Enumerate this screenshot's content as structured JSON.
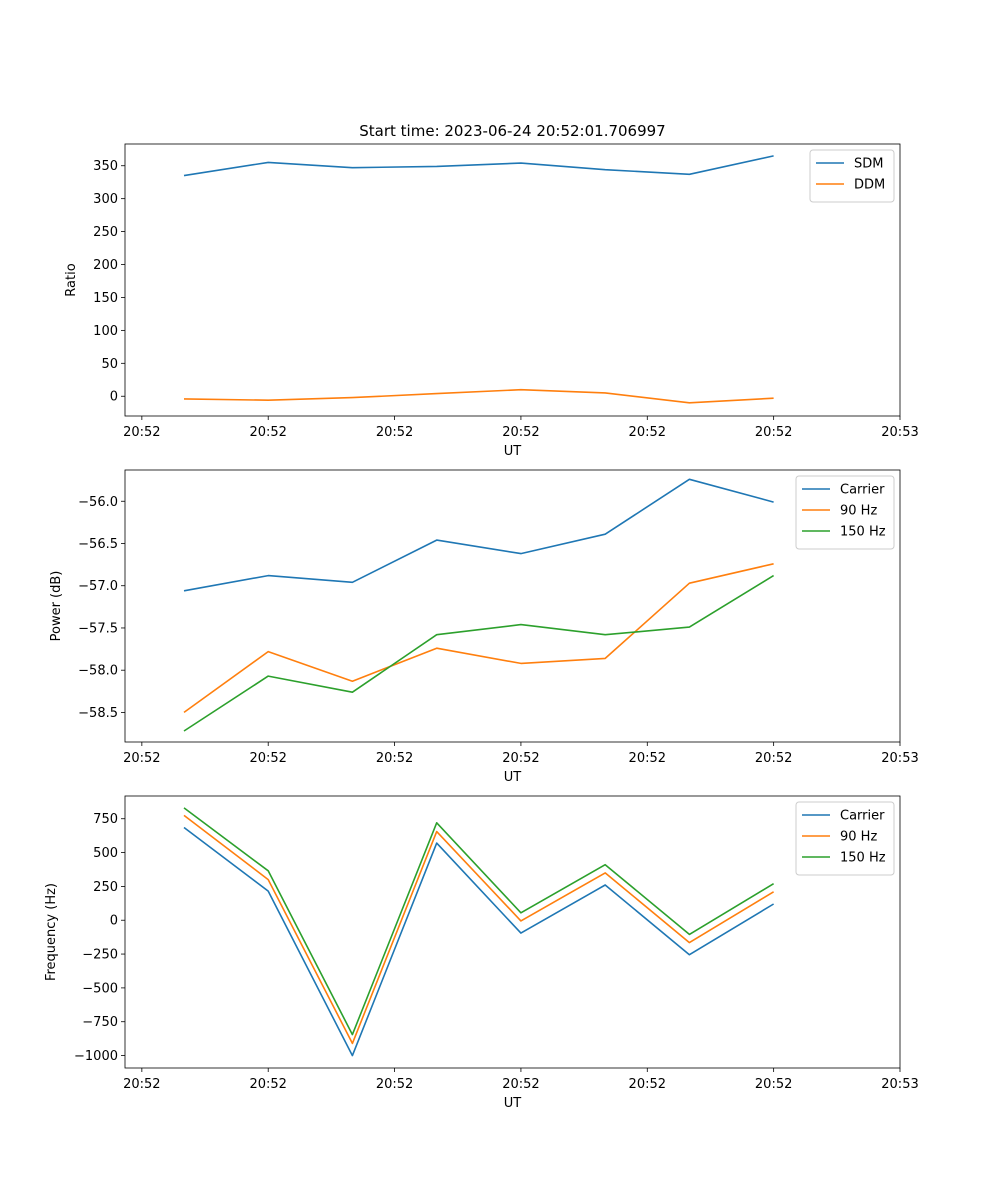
{
  "figure": {
    "title": "Start time: 2023-06-24 20:52:01.706997"
  },
  "chart_data": [
    {
      "type": "line",
      "ylabel": "Ratio",
      "xlabel": "UT",
      "x": [
        0.25,
        0.75,
        1.25,
        1.75,
        2.25,
        2.75,
        3.25,
        3.75
      ],
      "xlim": [
        -0.1,
        4.5
      ],
      "x_ticks": [
        0,
        0.75,
        1.5,
        2.25,
        3.0,
        3.75,
        4.5
      ],
      "x_tick_labels": [
        "20:52",
        "20:52",
        "20:52",
        "20:52",
        "20:52",
        "20:52",
        "20:53"
      ],
      "ylim": [
        -30,
        383
      ],
      "y_ticks": [
        0,
        50,
        100,
        150,
        200,
        250,
        300,
        350
      ],
      "y_tick_labels": [
        "0",
        "50",
        "100",
        "150",
        "200",
        "250",
        "300",
        "350"
      ],
      "legend_position": "upper right",
      "series": [
        {
          "name": "SDM",
          "color": "#1f77b4",
          "values": [
            335,
            355,
            347,
            349,
            354,
            344,
            337,
            365
          ]
        },
        {
          "name": "DDM",
          "color": "#ff7f0e",
          "values": [
            -4,
            -6,
            -2,
            4,
            10,
            5,
            -10,
            -3
          ]
        }
      ]
    },
    {
      "type": "line",
      "ylabel": "Power (dB)",
      "xlabel": "UT",
      "x": [
        0.25,
        0.75,
        1.25,
        1.75,
        2.25,
        2.75,
        3.25,
        3.75
      ],
      "xlim": [
        -0.1,
        4.5
      ],
      "x_ticks": [
        0,
        0.75,
        1.5,
        2.25,
        3.0,
        3.75,
        4.5
      ],
      "x_tick_labels": [
        "20:52",
        "20:52",
        "20:52",
        "20:52",
        "20:52",
        "20:52",
        "20:53"
      ],
      "ylim": [
        -58.85,
        -55.63
      ],
      "y_ticks": [
        -58.5,
        -58.0,
        -57.5,
        -57.0,
        -56.5,
        -56.0
      ],
      "y_tick_labels": [
        "−58.5",
        "−58.0",
        "−57.5",
        "−57.0",
        "−56.5",
        "−56.0"
      ],
      "legend_position": "upper right",
      "series": [
        {
          "name": "Carrier",
          "color": "#1f77b4",
          "values": [
            -57.06,
            -56.88,
            -56.96,
            -56.46,
            -56.62,
            -56.39,
            -55.74,
            -56.01
          ]
        },
        {
          "name": "90 Hz",
          "color": "#ff7f0e",
          "values": [
            -58.5,
            -57.78,
            -58.13,
            -57.74,
            -57.92,
            -57.86,
            -56.97,
            -56.74
          ]
        },
        {
          "name": "150 Hz",
          "color": "#2ca02c",
          "values": [
            -58.72,
            -58.07,
            -58.26,
            -57.58,
            -57.46,
            -57.58,
            -57.49,
            -56.88
          ]
        }
      ]
    },
    {
      "type": "line",
      "ylabel": "Frequency (Hz)",
      "xlabel": "UT",
      "x": [
        0.25,
        0.75,
        1.25,
        1.75,
        2.25,
        2.75,
        3.25,
        3.75
      ],
      "xlim": [
        -0.1,
        4.5
      ],
      "x_ticks": [
        0,
        0.75,
        1.5,
        2.25,
        3.0,
        3.75,
        4.5
      ],
      "x_tick_labels": [
        "20:52",
        "20:52",
        "20:52",
        "20:52",
        "20:52",
        "20:52",
        "20:53"
      ],
      "ylim": [
        -1092,
        918
      ],
      "y_ticks": [
        -1000,
        -750,
        -500,
        -250,
        0,
        250,
        500,
        750
      ],
      "y_tick_labels": [
        "−1000",
        "−750",
        "−500",
        "−250",
        "0",
        "250",
        "500",
        "750"
      ],
      "legend_position": "upper right",
      "series": [
        {
          "name": "Carrier",
          "color": "#1f77b4",
          "values": [
            685,
            215,
            -1000,
            570,
            -95,
            260,
            -255,
            120
          ]
        },
        {
          "name": "90 Hz",
          "color": "#ff7f0e",
          "values": [
            775,
            300,
            -910,
            655,
            -5,
            350,
            -165,
            210
          ]
        },
        {
          "name": "150 Hz",
          "color": "#2ca02c",
          "values": [
            830,
            365,
            -845,
            720,
            55,
            410,
            -105,
            270
          ]
        }
      ]
    }
  ]
}
